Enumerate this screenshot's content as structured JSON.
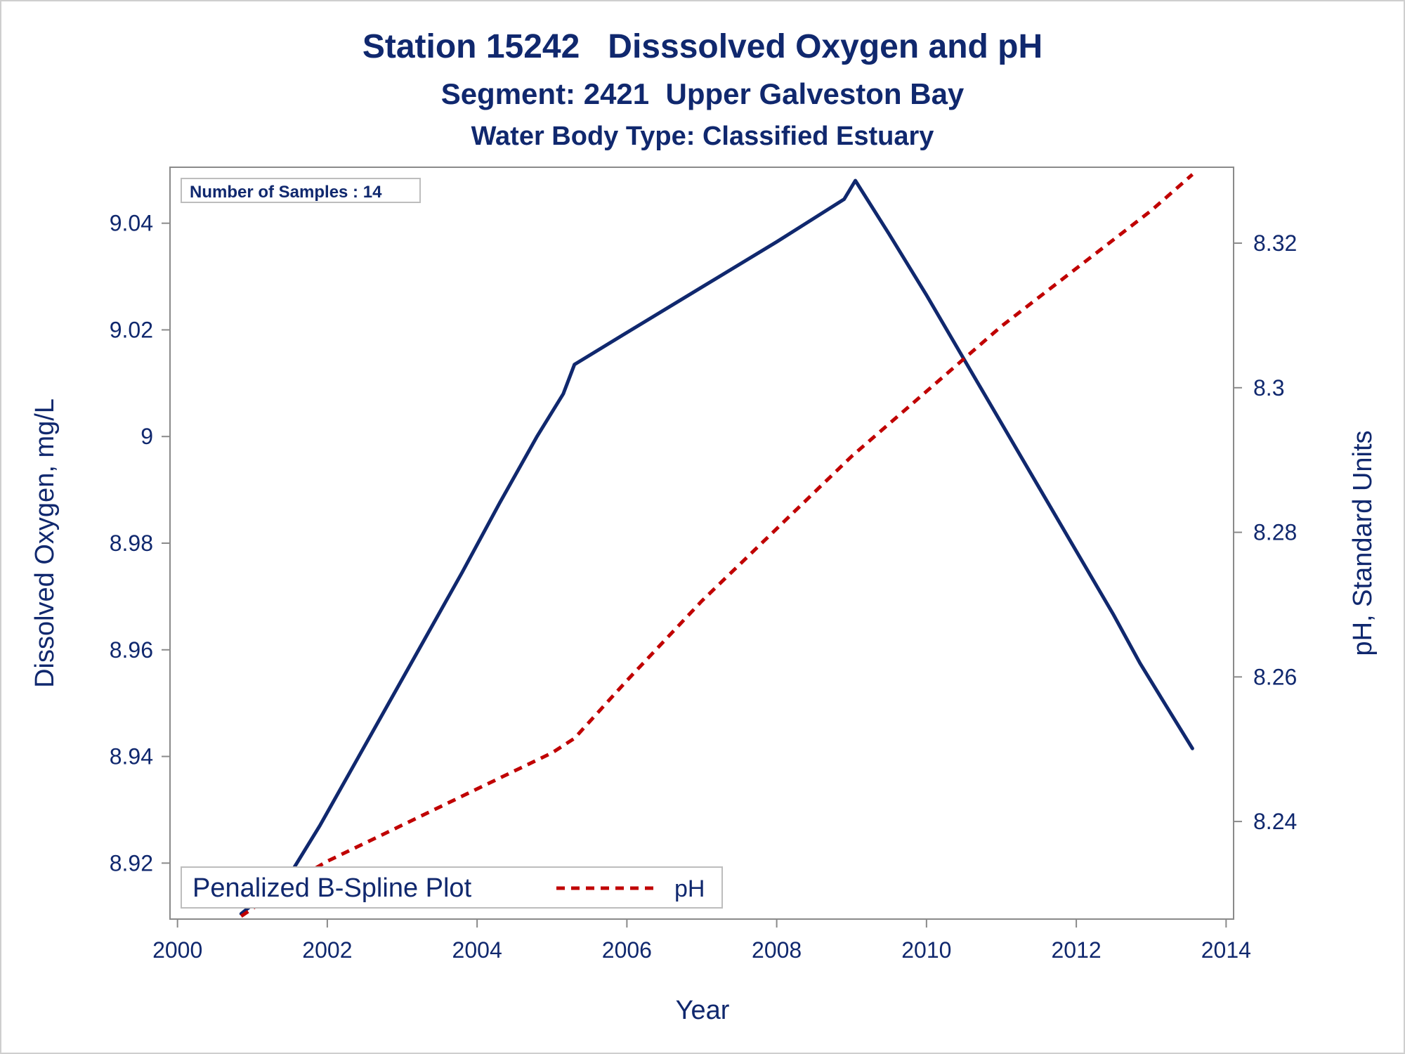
{
  "chart_data": {
    "type": "line",
    "title": "Station 15242   Disssolved Oxygen and pH",
    "subtitle": "Segment: 2421  Upper Galveston Bay",
    "subtitle2": "Water Body Type: Classified Estuary",
    "xlabel": "Year",
    "ylabel_left": "Dissolved Oxygen, mg/L",
    "ylabel_right": "pH, Standard Units",
    "xlim": [
      1999.9,
      2014.1
    ],
    "ylim_left": [
      8.9095,
      9.0505
    ],
    "ylim_right": [
      8.2265,
      8.3305
    ],
    "x_ticks": [
      2000,
      2002,
      2004,
      2006,
      2008,
      2010,
      2012,
      2014
    ],
    "y_left_ticks": [
      8.92,
      8.94,
      8.96,
      8.98,
      9.0,
      9.02,
      9.04
    ],
    "y_left_tick_labels": [
      "8.92",
      "8.94",
      "8.96",
      "8.98",
      "9",
      "9.02",
      "9.04"
    ],
    "y_right_ticks": [
      8.24,
      8.26,
      8.28,
      8.3,
      8.32
    ],
    "y_right_tick_labels": [
      "8.24",
      "8.26",
      "8.28",
      "8.3",
      "8.32"
    ],
    "inset_label": "Number of Samples : 14",
    "legend": {
      "title": "Penalized B-Spline Plot",
      "entries": [
        "pH"
      ],
      "placement": "bottom-left"
    },
    "series": [
      {
        "key": "do",
        "axis": "left",
        "color": "#10286e",
        "style": "solid",
        "x": [
          2000.85,
          2001.2,
          2001.55,
          2001.9,
          2002.3,
          2002.8,
          2003.3,
          2003.8,
          2004.3,
          2004.8,
          2005.15,
          2005.3,
          2006.0,
          2007.0,
          2008.0,
          2008.9,
          2009.05,
          2009.5,
          2010.0,
          2010.5,
          2011.0,
          2011.5,
          2012.0,
          2012.5,
          2012.85,
          2013.2,
          2013.55
        ],
        "y": [
          8.9105,
          8.9145,
          8.919,
          8.927,
          8.937,
          8.9495,
          8.962,
          8.9745,
          8.9875,
          9.0,
          9.008,
          9.0135,
          9.0195,
          9.028,
          9.0365,
          9.0445,
          9.048,
          9.038,
          9.0265,
          9.0145,
          9.0025,
          8.9905,
          8.9785,
          8.9665,
          8.9575,
          8.9495,
          8.9415
        ]
      },
      {
        "key": "ph",
        "name": "pH",
        "axis": "right",
        "color": "#c00000",
        "style": "dashed",
        "x": [
          2000.85,
          2001.5,
          2002.0,
          2003.0,
          2004.0,
          2005.0,
          2005.3,
          2006.0,
          2007.0,
          2008.0,
          2009.0,
          2010.0,
          2011.0,
          2012.0,
          2013.0,
          2013.55
        ],
        "y": [
          8.2269,
          8.2315,
          8.2345,
          8.2395,
          8.2445,
          8.2495,
          8.2515,
          8.2595,
          8.2705,
          8.2805,
          8.2905,
          8.2995,
          8.3085,
          8.3165,
          8.3245,
          8.3295
        ]
      }
    ]
  }
}
